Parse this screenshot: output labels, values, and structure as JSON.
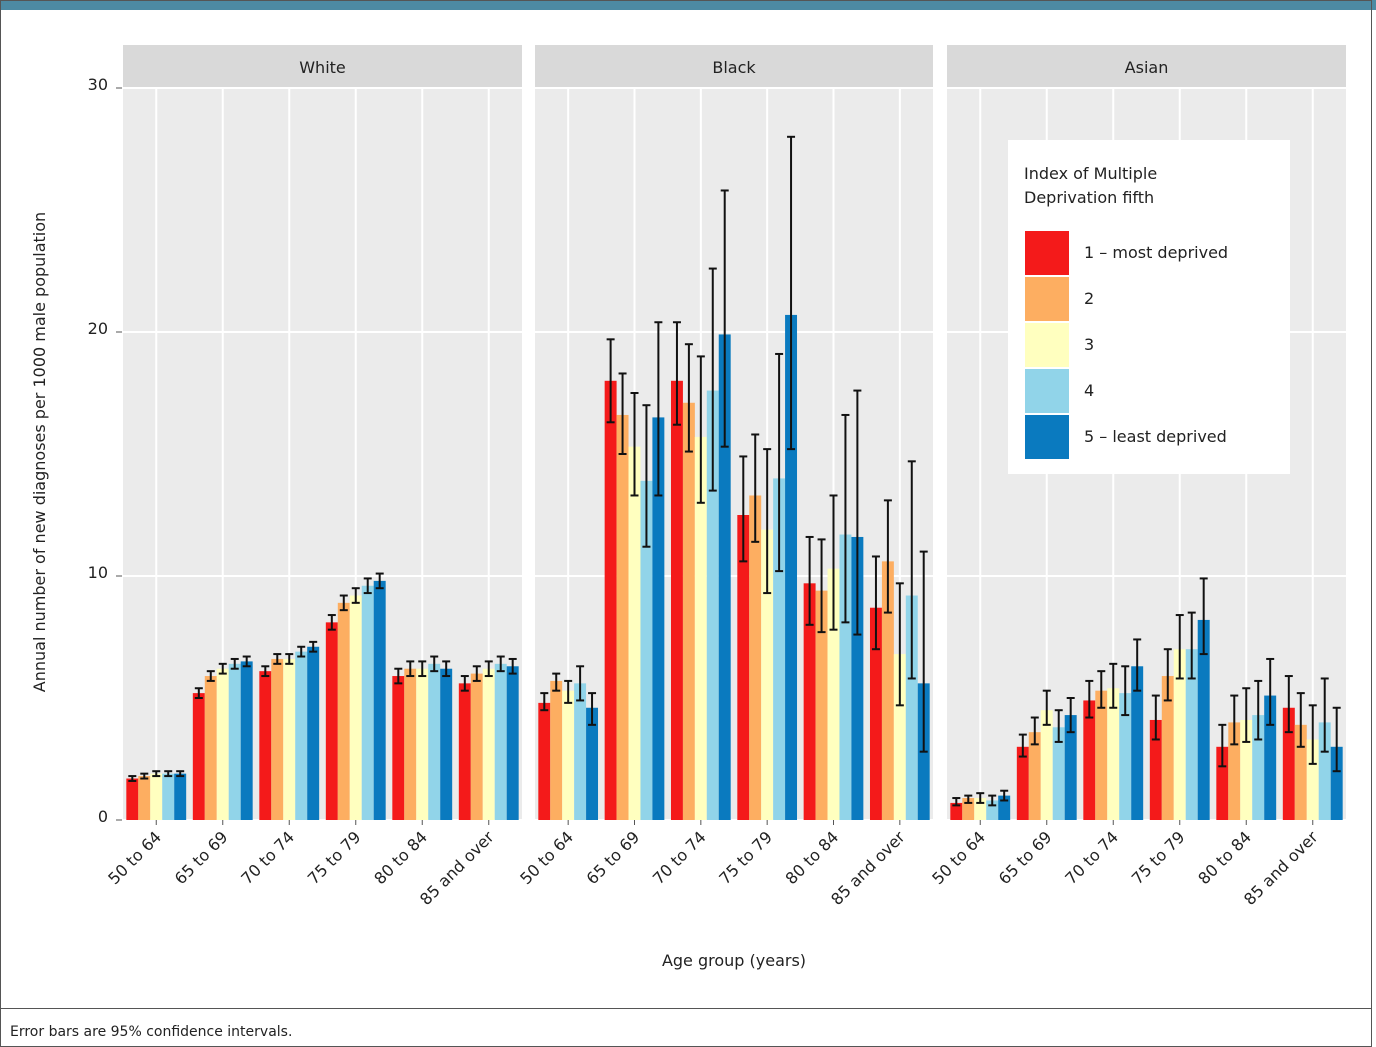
{
  "chart_data": {
    "type": "bar",
    "y_label": "Annual number of new diagnoses per 1000 male population",
    "x_label": "Age group (years)",
    "legend_title": "Index of Multiple Deprivation fifth",
    "legend_position": "upper right",
    "grid": true,
    "ylim": [
      0,
      30
    ],
    "yticks": [
      0,
      10,
      20,
      30
    ],
    "categories": [
      "50 to 64",
      "65 to 69",
      "70 to 74",
      "75 to 79",
      "80 to 84",
      "85 and over"
    ],
    "series": [
      {
        "name": "1 – most deprived",
        "color": "#f41a1a"
      },
      {
        "name": "2",
        "color": "#fdae61"
      },
      {
        "name": "3",
        "color": "#ffffbf"
      },
      {
        "name": "4",
        "color": "#91d4e9"
      },
      {
        "name": "5 – least deprived",
        "color": "#0a7abf"
      }
    ],
    "facets": [
      {
        "title": "White",
        "series": [
          {
            "values": [
              1.7,
              5.2,
              6.1,
              8.1,
              5.9,
              5.6
            ],
            "lower": [
              1.6,
              5.0,
              5.9,
              7.8,
              5.6,
              5.3
            ],
            "upper": [
              1.8,
              5.4,
              6.3,
              8.4,
              6.2,
              5.9
            ]
          },
          {
            "values": [
              1.8,
              5.9,
              6.6,
              8.9,
              6.2,
              6.0
            ],
            "lower": [
              1.7,
              5.7,
              6.4,
              8.6,
              5.9,
              5.7
            ],
            "upper": [
              1.9,
              6.1,
              6.8,
              9.2,
              6.5,
              6.3
            ]
          },
          {
            "values": [
              1.9,
              6.2,
              6.6,
              9.2,
              6.2,
              6.2
            ],
            "lower": [
              1.8,
              6.0,
              6.4,
              8.9,
              5.9,
              5.9
            ],
            "upper": [
              2.0,
              6.4,
              6.8,
              9.5,
              6.5,
              6.5
            ]
          },
          {
            "values": [
              1.9,
              6.4,
              6.9,
              9.6,
              6.4,
              6.4
            ],
            "lower": [
              1.8,
              6.2,
              6.7,
              9.3,
              6.1,
              6.1
            ],
            "upper": [
              2.0,
              6.6,
              7.1,
              9.9,
              6.7,
              6.7
            ]
          },
          {
            "values": [
              1.9,
              6.5,
              7.1,
              9.8,
              6.2,
              6.3
            ],
            "lower": [
              1.8,
              6.3,
              6.9,
              9.5,
              5.9,
              6.0
            ],
            "upper": [
              2.0,
              6.7,
              7.3,
              10.1,
              6.5,
              6.6
            ]
          }
        ]
      },
      {
        "title": "Black",
        "series": [
          {
            "values": [
              4.8,
              18.0,
              18.0,
              12.5,
              9.7,
              8.7
            ],
            "lower": [
              4.5,
              16.3,
              16.2,
              10.6,
              8.0,
              7.0
            ],
            "upper": [
              5.2,
              19.7,
              20.4,
              14.9,
              11.6,
              10.8
            ]
          },
          {
            "values": [
              5.7,
              16.6,
              17.1,
              13.3,
              9.4,
              10.6
            ],
            "lower": [
              5.3,
              15.0,
              15.1,
              11.4,
              7.7,
              8.5
            ],
            "upper": [
              6.0,
              18.3,
              19.5,
              15.8,
              11.5,
              13.1
            ]
          },
          {
            "values": [
              5.3,
              15.3,
              15.7,
              11.9,
              10.3,
              6.8
            ],
            "lower": [
              4.8,
              13.3,
              13.0,
              9.3,
              7.8,
              4.7
            ],
            "upper": [
              5.7,
              17.5,
              19.0,
              15.2,
              13.3,
              9.7
            ]
          },
          {
            "values": [
              5.6,
              13.9,
              17.6,
              14.0,
              11.7,
              9.2
            ],
            "lower": [
              4.9,
              11.2,
              13.5,
              10.2,
              8.1,
              5.8
            ],
            "upper": [
              6.3,
              17.0,
              22.6,
              19.1,
              16.6,
              14.7
            ]
          },
          {
            "values": [
              4.6,
              16.5,
              19.9,
              20.7,
              11.6,
              5.6
            ],
            "lower": [
              3.9,
              13.3,
              15.3,
              15.2,
              7.6,
              2.8
            ],
            "upper": [
              5.2,
              20.4,
              25.8,
              28.0,
              17.6,
              11.0
            ]
          }
        ]
      },
      {
        "title": "Asian",
        "series": [
          {
            "values": [
              0.7,
              3.0,
              4.9,
              4.1,
              3.0,
              4.6
            ],
            "lower": [
              0.6,
              2.6,
              4.2,
              3.3,
              2.2,
              3.6
            ],
            "upper": [
              0.9,
              3.5,
              5.7,
              5.1,
              3.9,
              5.9
            ]
          },
          {
            "values": [
              0.9,
              3.6,
              5.3,
              5.9,
              4.0,
              3.9
            ],
            "lower": [
              0.7,
              3.1,
              4.6,
              4.9,
              3.1,
              3.0
            ],
            "upper": [
              1.0,
              4.2,
              6.1,
              7.0,
              5.1,
              5.2
            ]
          },
          {
            "values": [
              0.9,
              4.5,
              5.4,
              7.0,
              4.1,
              3.3
            ],
            "lower": [
              0.7,
              3.9,
              4.6,
              5.8,
              3.2,
              2.3
            ],
            "upper": [
              1.1,
              5.3,
              6.4,
              8.4,
              5.4,
              4.7
            ]
          },
          {
            "values": [
              0.8,
              3.8,
              5.2,
              7.0,
              4.3,
              4.0
            ],
            "lower": [
              0.6,
              3.2,
              4.3,
              5.8,
              3.3,
              2.8
            ],
            "upper": [
              1.0,
              4.5,
              6.3,
              8.5,
              5.7,
              5.8
            ]
          },
          {
            "values": [
              1.0,
              4.3,
              6.3,
              8.2,
              5.1,
              3.0
            ],
            "lower": [
              0.8,
              3.6,
              5.3,
              6.8,
              3.9,
              2.0
            ],
            "upper": [
              1.2,
              5.0,
              7.4,
              9.9,
              6.6,
              4.6
            ]
          }
        ]
      }
    ]
  },
  "note": "Error bars are 95% confidence intervals."
}
